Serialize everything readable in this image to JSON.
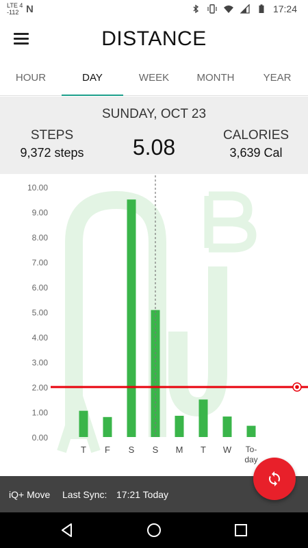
{
  "status_bar": {
    "signal_top": "LTE 4",
    "signal_bottom": "-112",
    "notification_letter": "N",
    "time": "17:24",
    "icons": [
      "bluetooth-icon",
      "vibrate-icon",
      "wifi-icon",
      "cell-signal-icon",
      "battery-icon"
    ]
  },
  "header": {
    "title": "DISTANCE",
    "menu_icon": "hamburger-menu-icon"
  },
  "tabs": [
    {
      "label": "HOUR",
      "active": false
    },
    {
      "label": "DAY",
      "active": true
    },
    {
      "label": "WEEK",
      "active": false
    },
    {
      "label": "MONTH",
      "active": false
    },
    {
      "label": "YEAR",
      "active": false
    }
  ],
  "summary": {
    "date": "SUNDAY, OCT 23",
    "steps_label": "STEPS",
    "steps_value": "9,372 steps",
    "distance_value": "5.08",
    "calories_label": "CALORIES",
    "calories_value": "3,639 Cal"
  },
  "chart_data": {
    "type": "bar",
    "categories": [
      "T",
      "F",
      "S",
      "S",
      "M",
      "T",
      "W",
      "To-day"
    ],
    "values": [
      1.05,
      0.8,
      9.5,
      5.08,
      0.85,
      1.5,
      0.82,
      0.45
    ],
    "y_ticks": [
      "0.00",
      "1.00",
      "2.00",
      "3.00",
      "4.00",
      "5.00",
      "6.00",
      "7.00",
      "8.00",
      "9.00",
      "10.00"
    ],
    "ylim": [
      0,
      10
    ],
    "goal": 2.0,
    "selected_index": 3,
    "bar_color": "#3ab54a",
    "goal_color": "#e8000b",
    "watermark_color": "#e3f4e4"
  },
  "bottom_bar": {
    "app_name": "iQ+ Move",
    "sync_label": "Last Sync:",
    "sync_time": "17:21 Today"
  },
  "fab": {
    "icon": "sync-icon",
    "color": "#e8202a"
  },
  "nav": {
    "back": "back-icon",
    "home": "home-icon",
    "recents": "recents-icon"
  }
}
